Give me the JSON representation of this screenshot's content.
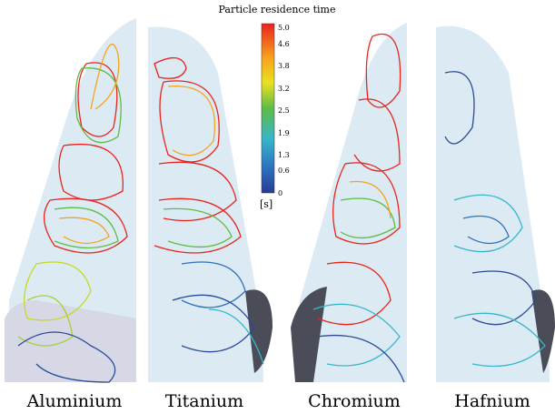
{
  "colorbar": {
    "title": "Particle residence time",
    "ticks": [
      "5.0",
      "4.6",
      "3.8",
      "3.2",
      "2.5",
      "1.9",
      "1.3",
      "0.6",
      "0"
    ],
    "unit": "[s]"
  },
  "panels": [
    {
      "label": "Aluminium"
    },
    {
      "label": "Titanium"
    },
    {
      "label": "Chromium"
    },
    {
      "label": "Hafnium"
    }
  ]
}
